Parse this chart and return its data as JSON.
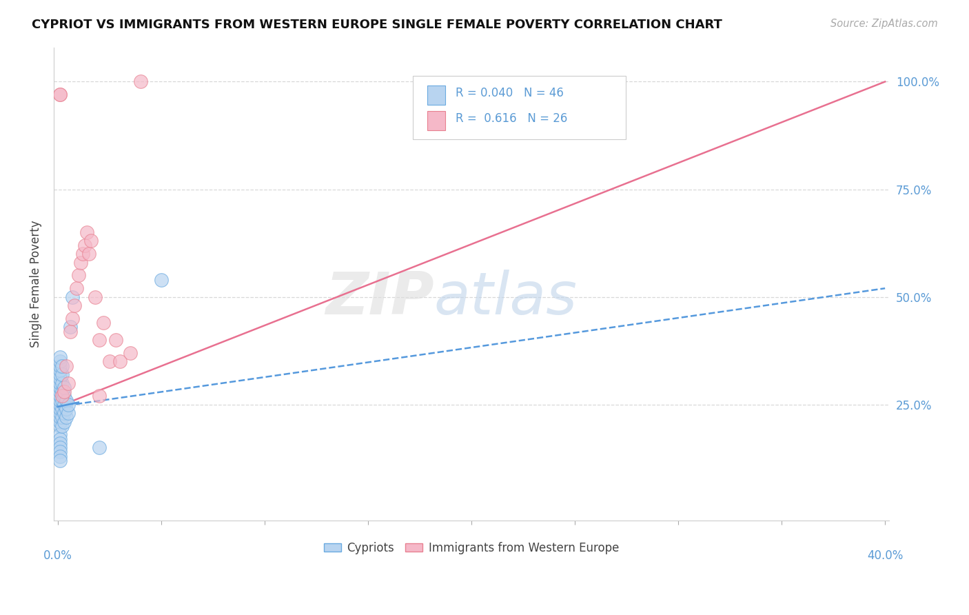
{
  "title": "CYPRIOT VS IMMIGRANTS FROM WESTERN EUROPE SINGLE FEMALE POVERTY CORRELATION CHART",
  "source": "Source: ZipAtlas.com",
  "ylabel": "Single Female Poverty",
  "cypriot_R": 0.04,
  "cypriot_N": 46,
  "immigrant_R": 0.616,
  "immigrant_N": 26,
  "xlim_min": 0.0,
  "xlim_max": 0.4,
  "ylim_min": 0.0,
  "ylim_max": 1.05,
  "ytick_values": [
    0.25,
    0.5,
    0.75,
    1.0
  ],
  "ytick_labels": [
    "25.0%",
    "50.0%",
    "75.0%",
    "100.0%"
  ],
  "cypriot_face": "#b8d4f0",
  "cypriot_edge": "#6aaae0",
  "immigrant_face": "#f5b8c8",
  "immigrant_edge": "#e88090",
  "cypriot_line_color": "#5599dd",
  "immigrant_line_color": "#e87090",
  "axis_label_color": "#5b9bd5",
  "title_color": "#111111",
  "source_color": "#aaaaaa",
  "grid_color": "#d8d8d8",
  "watermark_zip_color": "#d8d8d8",
  "watermark_atlas_color": "#b8cce4",
  "cypriot_x": [
    0.001,
    0.001,
    0.001,
    0.001,
    0.001,
    0.001,
    0.001,
    0.001,
    0.001,
    0.001,
    0.001,
    0.001,
    0.001,
    0.001,
    0.001,
    0.001,
    0.001,
    0.001,
    0.001,
    0.001,
    0.001,
    0.001,
    0.001,
    0.001,
    0.002,
    0.002,
    0.002,
    0.002,
    0.002,
    0.002,
    0.002,
    0.002,
    0.003,
    0.003,
    0.003,
    0.003,
    0.003,
    0.004,
    0.004,
    0.004,
    0.005,
    0.005,
    0.006,
    0.007,
    0.02,
    0.05
  ],
  "cypriot_y": [
    0.2,
    0.21,
    0.22,
    0.23,
    0.24,
    0.25,
    0.26,
    0.27,
    0.28,
    0.29,
    0.3,
    0.31,
    0.32,
    0.33,
    0.18,
    0.17,
    0.16,
    0.15,
    0.14,
    0.34,
    0.35,
    0.36,
    0.13,
    0.12,
    0.2,
    0.22,
    0.24,
    0.26,
    0.28,
    0.3,
    0.32,
    0.34,
    0.21,
    0.23,
    0.25,
    0.27,
    0.29,
    0.22,
    0.24,
    0.26,
    0.23,
    0.25,
    0.43,
    0.5,
    0.15,
    0.54
  ],
  "immigrant_x": [
    0.001,
    0.001,
    0.002,
    0.003,
    0.004,
    0.005,
    0.006,
    0.007,
    0.008,
    0.009,
    0.01,
    0.011,
    0.012,
    0.013,
    0.014,
    0.015,
    0.016,
    0.018,
    0.02,
    0.022,
    0.025,
    0.028,
    0.03,
    0.035,
    0.02,
    0.04
  ],
  "immigrant_y": [
    0.97,
    0.97,
    0.27,
    0.28,
    0.34,
    0.3,
    0.42,
    0.45,
    0.48,
    0.52,
    0.55,
    0.58,
    0.6,
    0.62,
    0.65,
    0.6,
    0.63,
    0.5,
    0.4,
    0.44,
    0.35,
    0.4,
    0.35,
    0.37,
    0.27,
    1.0
  ],
  "cyp_trend_x": [
    0.0,
    0.4
  ],
  "cyp_trend_y": [
    0.245,
    0.52
  ],
  "imm_trend_x": [
    0.0,
    0.4
  ],
  "imm_trend_y": [
    0.245,
    1.0
  ]
}
